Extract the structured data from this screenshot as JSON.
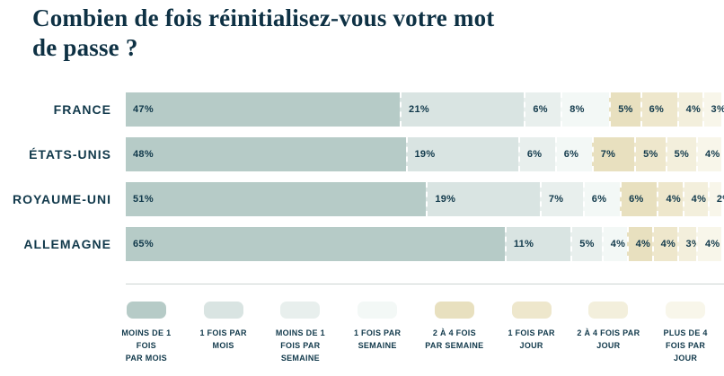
{
  "title": "Combien de fois réinitialisez-vous votre mot\nde passe ?",
  "colors": {
    "background": "#ffffff",
    "title_text": "#0e3144",
    "label_text": "#11394b",
    "divider": "#ccd4d2",
    "segment_separator": "#ffffff"
  },
  "chart_data": {
    "type": "bar",
    "variant": "horizontal-stacked",
    "unit": "%",
    "xlim": [
      0,
      100
    ],
    "grid": false,
    "legend_position": "bottom",
    "value_labels": "inside-start",
    "categories": [
      "FRANCE",
      "ÉTATS-UNIS",
      "ROYAUME-UNI",
      "ALLEMAGNE"
    ],
    "series": [
      {
        "name": "Moins de 1 fois par mois",
        "label_lines": [
          "MOINS DE 1 FOIS",
          "PAR MOIS"
        ],
        "color": "#b6cbc7",
        "values": [
          47,
          48,
          51,
          65
        ]
      },
      {
        "name": "1 fois par mois",
        "label_lines": [
          "1 FOIS PAR",
          "MOIS"
        ],
        "color": "#d9e4e2",
        "values": [
          21,
          19,
          19,
          11
        ]
      },
      {
        "name": "Moins de 1 fois par semaine",
        "label_lines": [
          "MOINS DE 1",
          "FOIS PAR",
          "SEMAINE"
        ],
        "color": "#e8efed",
        "values": [
          6,
          6,
          7,
          5
        ]
      },
      {
        "name": "1 fois par semaine",
        "label_lines": [
          "1 FOIS PAR",
          "SEMAINE"
        ],
        "color": "#f3f8f6",
        "values": [
          8,
          6,
          6,
          4
        ]
      },
      {
        "name": "2 à 4 fois par semaine",
        "label_lines": [
          "2 À 4 FOIS",
          "PAR SEMAINE"
        ],
        "color": "#e8e0bf",
        "values": [
          5,
          7,
          6,
          4
        ]
      },
      {
        "name": "1 fois par jour",
        "label_lines": [
          "1 FOIS PAR",
          "JOUR"
        ],
        "color": "#eee7cc",
        "values": [
          6,
          5,
          4,
          4
        ]
      },
      {
        "name": "2 à 4 fois par jour",
        "label_lines": [
          "2 À 4 FOIS PAR",
          "JOUR"
        ],
        "color": "#f3efdc",
        "values": [
          4,
          5,
          4,
          3
        ]
      },
      {
        "name": "Plus de 4 fois par jour",
        "label_lines": [
          "PLUS DE 4",
          "FOIS PAR",
          "JOUR"
        ],
        "color": "#f8f6ea",
        "values": [
          3,
          4,
          2,
          4
        ]
      }
    ]
  }
}
